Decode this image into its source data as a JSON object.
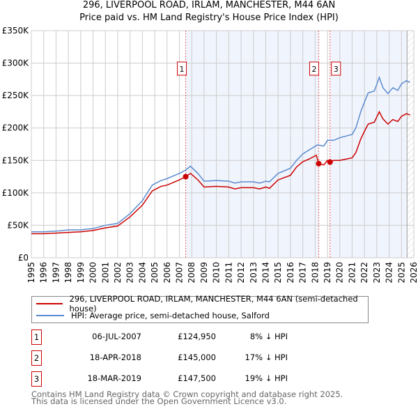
{
  "chart_data": {
    "type": "line",
    "title": "296, LIVERPOOL ROAD, IRLAM, MANCHESTER, M44 6AN",
    "subtitle": "Price paid vs. HM Land Registry's House Price Index (HPI)",
    "xlim": [
      1995,
      2026
    ],
    "ylim": [
      0,
      350000
    ],
    "y_ticks": [
      0,
      50000,
      100000,
      150000,
      200000,
      250000,
      300000,
      350000
    ],
    "y_tick_labels": [
      "£0",
      "£50K",
      "£100K",
      "£150K",
      "£200K",
      "£250K",
      "£300K",
      "£350K"
    ],
    "x_ticks": [
      1995,
      1996,
      1997,
      1998,
      1999,
      2000,
      2001,
      2002,
      2003,
      2004,
      2005,
      2006,
      2007,
      2008,
      2009,
      2010,
      2011,
      2012,
      2013,
      2014,
      2015,
      2016,
      2017,
      2018,
      2019,
      2020,
      2021,
      2022,
      2023,
      2024,
      2025,
      2026
    ],
    "grid": true,
    "colors": {
      "property": "#cc0000",
      "hpi": "#5b8bd0",
      "shade": "#f0f4fc",
      "vline": "#e06060"
    },
    "series": [
      {
        "name": "296, LIVERPOOL ROAD, IRLAM, MANCHESTER, M44 6AN (semi-detached house)",
        "color": "#cc0000",
        "x": [
          1995,
          1996,
          1997,
          1998,
          1999,
          2000,
          2001,
          2002,
          2003,
          2004,
          2004.8,
          2005.5,
          2006,
          2007,
          2007.51,
          2007.9,
          2008.5,
          2009,
          2010,
          2011,
          2011.5,
          2012,
          2013,
          2013.5,
          2014,
          2014.3,
          2015,
          2016,
          2016.5,
          2017,
          2017.5,
          2018.1,
          2018.29,
          2018.7,
          2019,
          2019.21,
          2019.5,
          2020,
          2021,
          2021.3,
          2021.7,
          2022,
          2022.3,
          2022.8,
          2023.2,
          2023.5,
          2023.9,
          2024.3,
          2024.7,
          2025,
          2025.4,
          2025.7
        ],
        "y": [
          37000,
          37000,
          38000,
          39000,
          40000,
          42000,
          46000,
          49000,
          63000,
          81000,
          103000,
          110000,
          112000,
          120000,
          124950,
          130000,
          120000,
          109000,
          110000,
          109000,
          106000,
          108000,
          108000,
          106000,
          109000,
          107000,
          120000,
          127000,
          140000,
          148000,
          152000,
          158000,
          145000,
          143000,
          150000,
          147500,
          150000,
          150000,
          154000,
          162000,
          183000,
          195000,
          206000,
          209000,
          225000,
          214000,
          206000,
          213000,
          210000,
          218000,
          222000,
          220000
        ]
      },
      {
        "name": "HPI: Average price, semi-detached house, Salford",
        "color": "#5b8bd0",
        "x": [
          1995,
          1996,
          1997,
          1998,
          1999,
          2000,
          2001,
          2002,
          2003,
          2004,
          2004.8,
          2005.5,
          2006,
          2007,
          2007.5,
          2007.9,
          2008.5,
          2009,
          2010,
          2011,
          2011.5,
          2012,
          2013,
          2013.5,
          2014,
          2014.3,
          2015,
          2016,
          2016.5,
          2017,
          2017.5,
          2018.2,
          2018.7,
          2019,
          2019.5,
          2020,
          2021,
          2021.3,
          2021.7,
          2022,
          2022.3,
          2022.8,
          2023.2,
          2023.5,
          2023.9,
          2024.3,
          2024.7,
          2025,
          2025.4,
          2025.7
        ],
        "y": [
          40000,
          40000,
          41000,
          43000,
          43000,
          45000,
          50000,
          53000,
          68000,
          88000,
          112000,
          119000,
          122000,
          130000,
          135000,
          141000,
          130000,
          118000,
          119000,
          118000,
          115000,
          117000,
          117000,
          115000,
          118000,
          117000,
          130000,
          138000,
          150000,
          160000,
          166000,
          174000,
          172000,
          181000,
          181000,
          185000,
          190000,
          200000,
          225000,
          240000,
          254000,
          257000,
          278000,
          262000,
          253000,
          262000,
          258000,
          268000,
          273000,
          270000
        ]
      }
    ],
    "sales": [
      {
        "label": "1",
        "x": 2007.51,
        "date": "06-JUL-2007",
        "price": 124950,
        "price_text": "£124,950",
        "hpi_text": "8% ↓ HPI"
      },
      {
        "label": "2",
        "x": 2018.29,
        "date": "18-APR-2018",
        "price": 145000,
        "price_text": "£145,000",
        "hpi_text": "17% ↓ HPI"
      },
      {
        "label": "3",
        "x": 2019.21,
        "date": "18-MAR-2019",
        "price": 147500,
        "price_text": "£147,500",
        "hpi_text": "19% ↓ HPI"
      }
    ],
    "shaded_ranges": [
      [
        2007.51,
        2018.29
      ],
      [
        2019.21,
        2025.45
      ]
    ],
    "forecast_from": 2025.45
  },
  "legend": {
    "property": "296, LIVERPOOL ROAD, IRLAM, MANCHESTER, M44 6AN (semi-detached house)",
    "hpi": "HPI: Average price, semi-detached house, Salford"
  },
  "footer": {
    "line1": "Contains HM Land Registry data © Crown copyright and database right 2025.",
    "line2": "This data is licensed under the Open Government Licence v3.0."
  }
}
